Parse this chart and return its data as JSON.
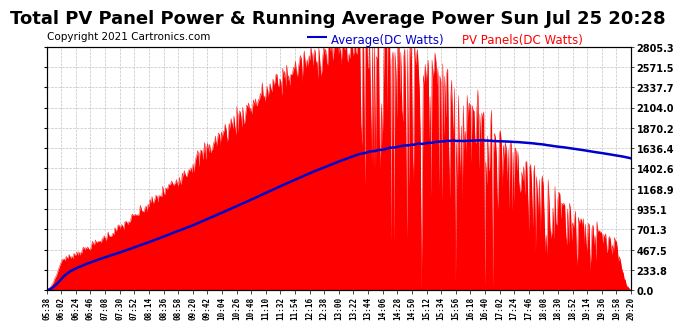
{
  "title": "Total PV Panel Power & Running Average Power Sun Jul 25 20:28",
  "copyright": "Copyright 2021 Cartronics.com",
  "ylabel_right_values": [
    0.0,
    233.8,
    467.5,
    701.3,
    935.1,
    1168.9,
    1402.6,
    1636.4,
    1870.2,
    2104.0,
    2337.7,
    2571.5,
    2805.3
  ],
  "ymax": 2805.3,
  "ymin": 0.0,
  "pv_color": "#ff0000",
  "avg_color": "#0000cd",
  "bg_color": "#ffffff",
  "grid_color": "#aaaaaa",
  "legend_avg_label": "Average(DC Watts)",
  "legend_pv_label": "PV Panels(DC Watts)",
  "title_fontsize": 13,
  "copyright_fontsize": 7.5,
  "legend_fontsize": 8.5,
  "x_tick_labels": [
    "05:38",
    "06:02",
    "06:24",
    "06:46",
    "07:08",
    "07:30",
    "07:52",
    "08:14",
    "08:36",
    "08:58",
    "09:20",
    "09:42",
    "10:04",
    "10:26",
    "10:48",
    "11:10",
    "11:32",
    "11:54",
    "12:16",
    "12:38",
    "13:00",
    "13:22",
    "13:44",
    "14:06",
    "14:28",
    "14:50",
    "15:12",
    "15:34",
    "15:56",
    "16:18",
    "16:40",
    "17:02",
    "17:24",
    "17:46",
    "18:08",
    "18:30",
    "18:52",
    "19:14",
    "19:36",
    "19:58",
    "20:20"
  ]
}
